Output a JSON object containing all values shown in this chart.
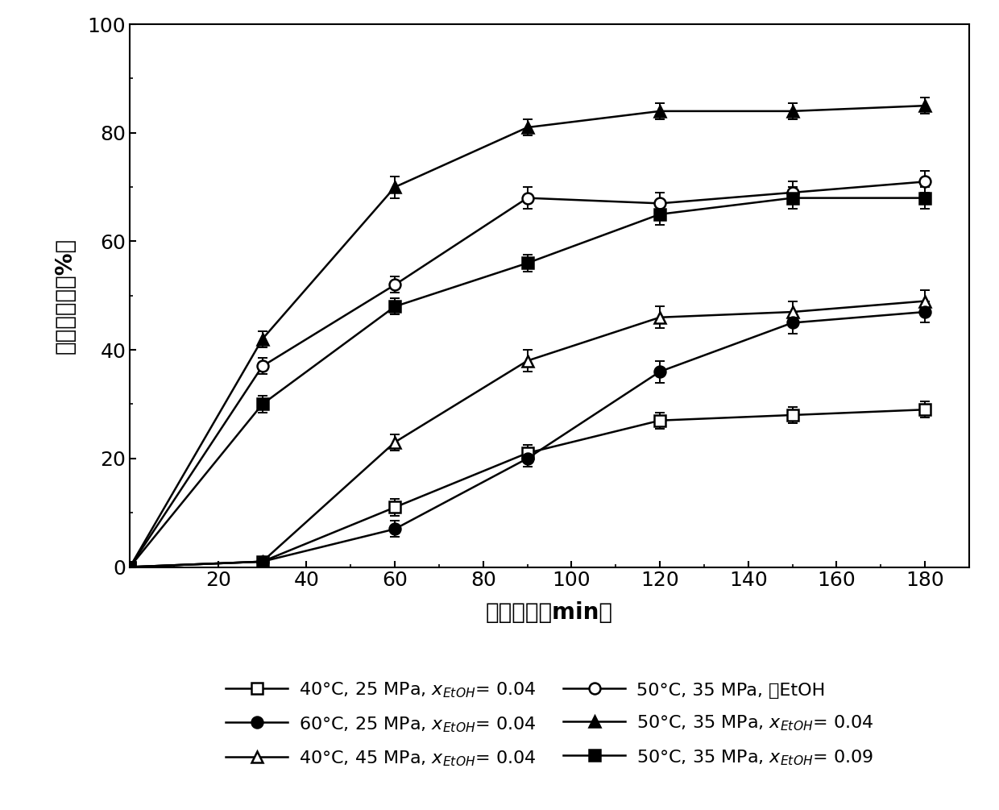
{
  "x": [
    0,
    30,
    60,
    90,
    120,
    150,
    180
  ],
  "series": [
    {
      "label": "40°C, 25 MPa, $x_{EtOH}$= 0.04",
      "y": [
        0,
        1,
        11,
        21,
        27,
        28,
        29
      ],
      "yerr": [
        0,
        0.5,
        1.5,
        1.5,
        1.5,
        1.5,
        1.5
      ],
      "marker": "s",
      "fillstyle": "none"
    },
    {
      "label": "40°C, 45 MPa, $x_{EtOH}$= 0.04",
      "y": [
        0,
        1,
        23,
        38,
        46,
        47,
        49
      ],
      "yerr": [
        0,
        0.5,
        1.5,
        2,
        2,
        2,
        2
      ],
      "marker": "^",
      "fillstyle": "none"
    },
    {
      "label": "50°C, 35 MPa, $x_{EtOH}$= 0.04",
      "y": [
        0,
        42,
        70,
        81,
        84,
        84,
        85
      ],
      "yerr": [
        0,
        1.5,
        2,
        1.5,
        1.5,
        1.5,
        1.5
      ],
      "marker": "^",
      "fillstyle": "full"
    },
    {
      "label": "60°C, 25 MPa, $x_{EtOH}$= 0.04",
      "y": [
        0,
        1,
        7,
        20,
        36,
        45,
        47
      ],
      "yerr": [
        0,
        0.5,
        1.5,
        1.5,
        2,
        2,
        2
      ],
      "marker": "o",
      "fillstyle": "full"
    },
    {
      "label": "50°C, 35 MPa, 无EtOH",
      "y": [
        0,
        37,
        52,
        68,
        67,
        69,
        71
      ],
      "yerr": [
        0,
        1.5,
        1.5,
        2,
        2,
        2,
        2
      ],
      "marker": "o",
      "fillstyle": "none"
    },
    {
      "label": "50°C, 35 MPa, $x_{EtOH}$= 0.09",
      "y": [
        0,
        30,
        48,
        56,
        65,
        68,
        68
      ],
      "yerr": [
        0,
        1.5,
        1.5,
        1.5,
        2,
        2,
        2
      ],
      "marker": "s",
      "fillstyle": "full"
    }
  ],
  "xlim": [
    0,
    190
  ],
  "ylim": [
    0,
    100
  ],
  "xticks": [
    20,
    40,
    60,
    80,
    100,
    120,
    140,
    160,
    180
  ],
  "yticks": [
    0,
    20,
    40,
    60,
    80,
    100
  ],
  "xlabel": "提取时间（min）",
  "ylabel": "油脂回收率（%）",
  "legend_col1": [
    0,
    1,
    2
  ],
  "legend_col2": [
    3,
    4,
    5
  ],
  "background_color": "#ffffff"
}
